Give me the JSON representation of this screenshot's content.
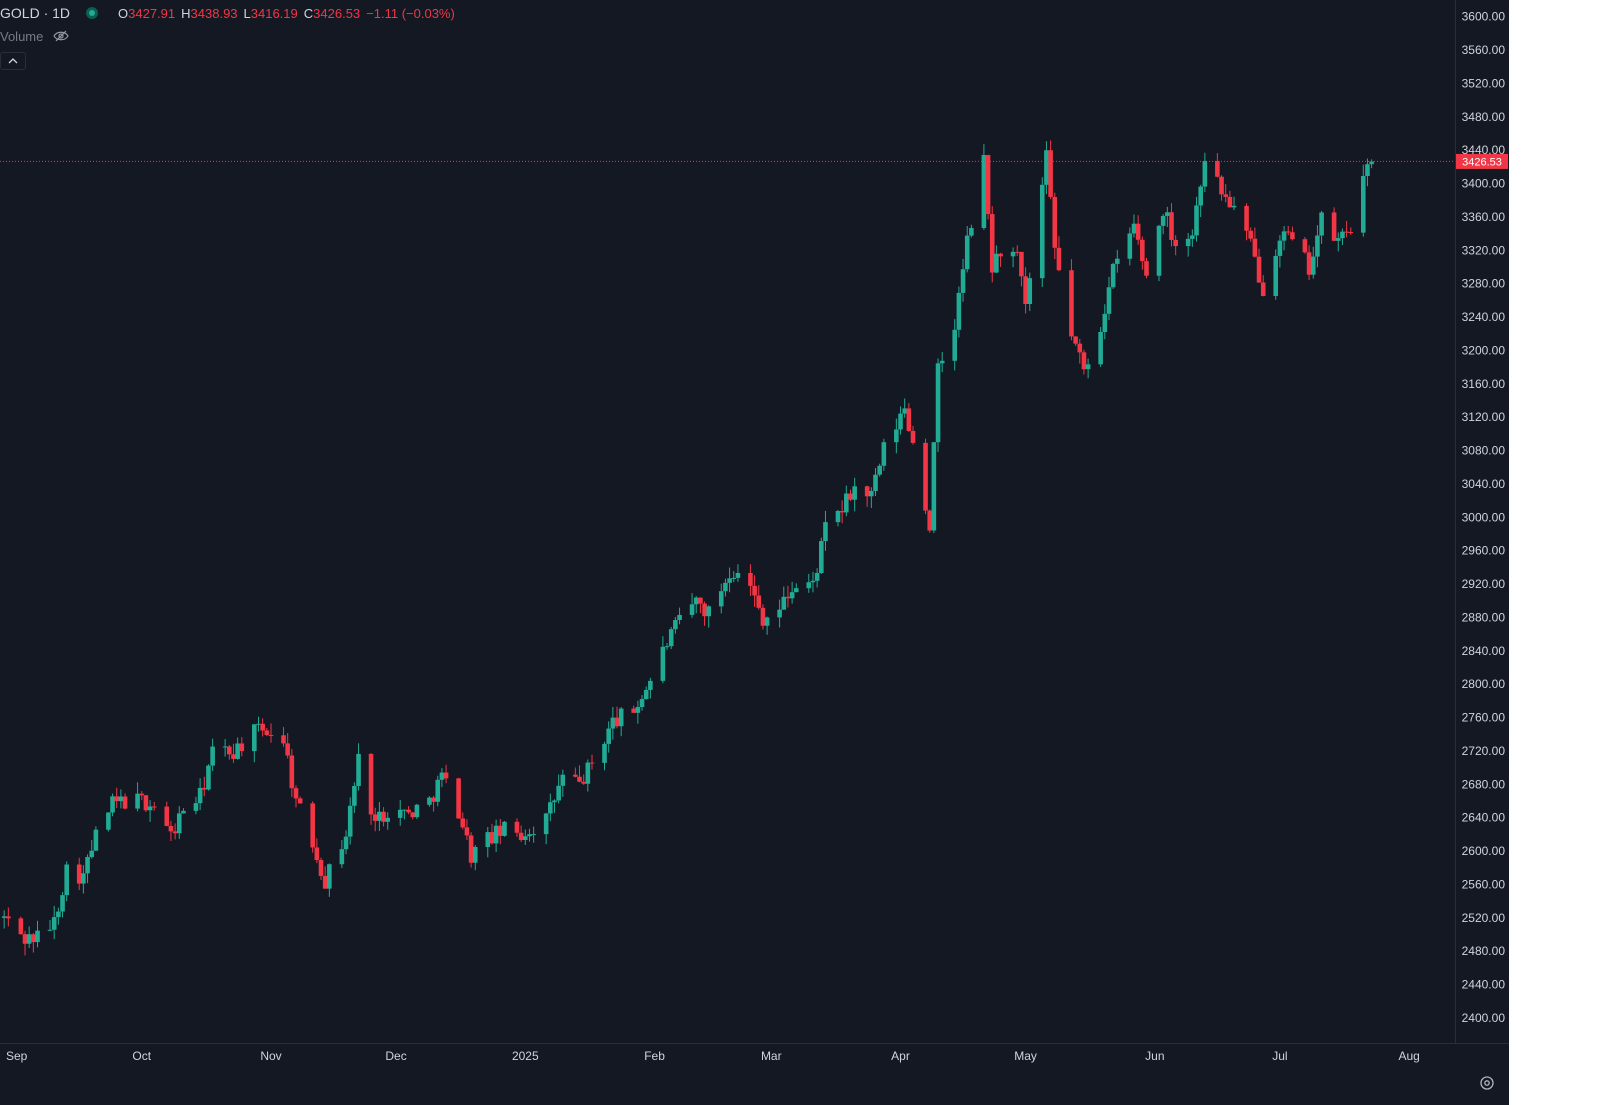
{
  "symbol": "GOLD · 1D",
  "ohlc": {
    "o_label": "O",
    "o": "3427.91",
    "h_label": "H",
    "h": "3438.93",
    "l_label": "L",
    "l": "3416.19",
    "c_label": "C",
    "c": "3426.53",
    "change": "−1.11 (−0.03%)"
  },
  "volume_label": "Volume",
  "colors": {
    "background": "#141823",
    "up": "#22ab94",
    "down": "#f23645",
    "axis_text": "#d1d4dc",
    "price_line": "#f23645",
    "gutter": "#ffffff"
  },
  "icons": {
    "status": "market-status-dot-icon",
    "volume_hidden": "eye-off-icon",
    "collapse": "chevron-up-icon",
    "settings": "gear-icon"
  },
  "chart_data": {
    "type": "candlestick",
    "title": "GOLD · 1D",
    "xlabel": "",
    "ylabel": "",
    "ylim": [
      2370,
      3620
    ],
    "grid": false,
    "y_ticks": [
      "3600.00",
      "3560.00",
      "3520.00",
      "3480.00",
      "3440.00",
      "3400.00",
      "3360.00",
      "3320.00",
      "3280.00",
      "3240.00",
      "3200.00",
      "3160.00",
      "3120.00",
      "3080.00",
      "3040.00",
      "3000.00",
      "2960.00",
      "2920.00",
      "2880.00",
      "2840.00",
      "2800.00",
      "2760.00",
      "2720.00",
      "2680.00",
      "2640.00",
      "2600.00",
      "2560.00",
      "2520.00",
      "2480.00",
      "2440.00",
      "2400.00"
    ],
    "x_ticks": [
      {
        "label": "Sep",
        "date": "2024-09-01"
      },
      {
        "label": "Oct",
        "date": "2024-10-01"
      },
      {
        "label": "Nov",
        "date": "2024-11-01"
      },
      {
        "label": "Dec",
        "date": "2024-12-01"
      },
      {
        "label": "2025",
        "date": "2025-01-01"
      },
      {
        "label": "Feb",
        "date": "2025-02-01"
      },
      {
        "label": "Mar",
        "date": "2025-03-01"
      },
      {
        "label": "Apr",
        "date": "2025-04-01"
      },
      {
        "label": "May",
        "date": "2025-05-01"
      },
      {
        "label": "Jun",
        "date": "2025-06-01"
      },
      {
        "label": "Jul",
        "date": "2025-07-01"
      },
      {
        "label": "Aug",
        "date": "2025-08-01"
      }
    ],
    "last_price": "3426.53",
    "close_points": [
      [
        "2024-08-29",
        2520
      ],
      [
        "2024-09-03",
        2495
      ],
      [
        "2024-09-06",
        2497
      ],
      [
        "2024-09-10",
        2515
      ],
      [
        "2024-09-13",
        2578
      ],
      [
        "2024-09-17",
        2570
      ],
      [
        "2024-09-20",
        2618
      ],
      [
        "2024-09-24",
        2656
      ],
      [
        "2024-09-27",
        2660
      ],
      [
        "2024-10-01",
        2660
      ],
      [
        "2024-10-04",
        2655
      ],
      [
        "2024-10-08",
        2618
      ],
      [
        "2024-10-11",
        2650
      ],
      [
        "2024-10-15",
        2665
      ],
      [
        "2024-10-18",
        2718
      ],
      [
        "2024-10-23",
        2720
      ],
      [
        "2024-10-28",
        2742
      ],
      [
        "2024-10-31",
        2745
      ],
      [
        "2024-11-04",
        2735
      ],
      [
        "2024-11-07",
        2660
      ],
      [
        "2024-11-11",
        2610
      ],
      [
        "2024-11-14",
        2565
      ],
      [
        "2024-11-19",
        2620
      ],
      [
        "2024-11-22",
        2710
      ],
      [
        "2024-11-26",
        2635
      ],
      [
        "2024-11-29",
        2650
      ],
      [
        "2024-12-04",
        2645
      ],
      [
        "2024-12-09",
        2660
      ],
      [
        "2024-12-12",
        2690
      ],
      [
        "2024-12-16",
        2650
      ],
      [
        "2024-12-19",
        2595
      ],
      [
        "2024-12-23",
        2615
      ],
      [
        "2024-12-27",
        2625
      ],
      [
        "2024-12-31",
        2620
      ],
      [
        "2025-01-06",
        2638
      ],
      [
        "2025-01-10",
        2688
      ],
      [
        "2025-01-14",
        2680
      ],
      [
        "2025-01-17",
        2705
      ],
      [
        "2025-01-22",
        2755
      ],
      [
        "2025-01-27",
        2768
      ],
      [
        "2025-01-30",
        2795
      ],
      [
        "2025-02-04",
        2850
      ],
      [
        "2025-02-07",
        2875
      ],
      [
        "2025-02-11",
        2900
      ],
      [
        "2025-02-14",
        2885
      ],
      [
        "2025-02-19",
        2935
      ],
      [
        "2025-02-21",
        2940
      ],
      [
        "2025-02-24",
        2915
      ],
      [
        "2025-02-27",
        2880
      ],
      [
        "2025-03-03",
        2890
      ],
      [
        "2025-03-06",
        2915
      ],
      [
        "2025-03-11",
        2920
      ],
      [
        "2025-03-14",
        2985
      ],
      [
        "2025-03-18",
        3010
      ],
      [
        "2025-03-21",
        3035
      ],
      [
        "2025-03-25",
        3025
      ],
      [
        "2025-03-28",
        3080
      ],
      [
        "2025-04-02",
        3130
      ],
      [
        "2025-04-04",
        3090
      ],
      [
        "2025-04-08",
        2990
      ],
      [
        "2025-04-10",
        3175
      ],
      [
        "2025-04-14",
        3230
      ],
      [
        "2025-04-17",
        3330
      ],
      [
        "2025-04-21",
        3425
      ],
      [
        "2025-04-23",
        3300
      ],
      [
        "2025-04-25",
        3320
      ],
      [
        "2025-04-29",
        3310
      ],
      [
        "2025-05-01",
        3250
      ],
      [
        "2025-05-06",
        3430
      ],
      [
        "2025-05-08",
        3320
      ],
      [
        "2025-05-12",
        3220
      ],
      [
        "2025-05-15",
        3175
      ],
      [
        "2025-05-19",
        3230
      ],
      [
        "2025-05-22",
        3295
      ],
      [
        "2025-05-27",
        3350
      ],
      [
        "2025-05-30",
        3290
      ],
      [
        "2025-06-03",
        3370
      ],
      [
        "2025-06-06",
        3330
      ],
      [
        "2025-06-10",
        3340
      ],
      [
        "2025-06-13",
        3435
      ],
      [
        "2025-06-17",
        3390
      ],
      [
        "2025-06-20",
        3370
      ],
      [
        "2025-06-24",
        3325
      ],
      [
        "2025-06-27",
        3275
      ],
      [
        "2025-07-01",
        3340
      ],
      [
        "2025-07-03",
        3335
      ],
      [
        "2025-07-08",
        3300
      ],
      [
        "2025-07-11",
        3355
      ],
      [
        "2025-07-15",
        3330
      ],
      [
        "2025-07-18",
        3350
      ],
      [
        "2025-07-21",
        3400
      ],
      [
        "2025-07-23",
        3426.53
      ]
    ]
  }
}
